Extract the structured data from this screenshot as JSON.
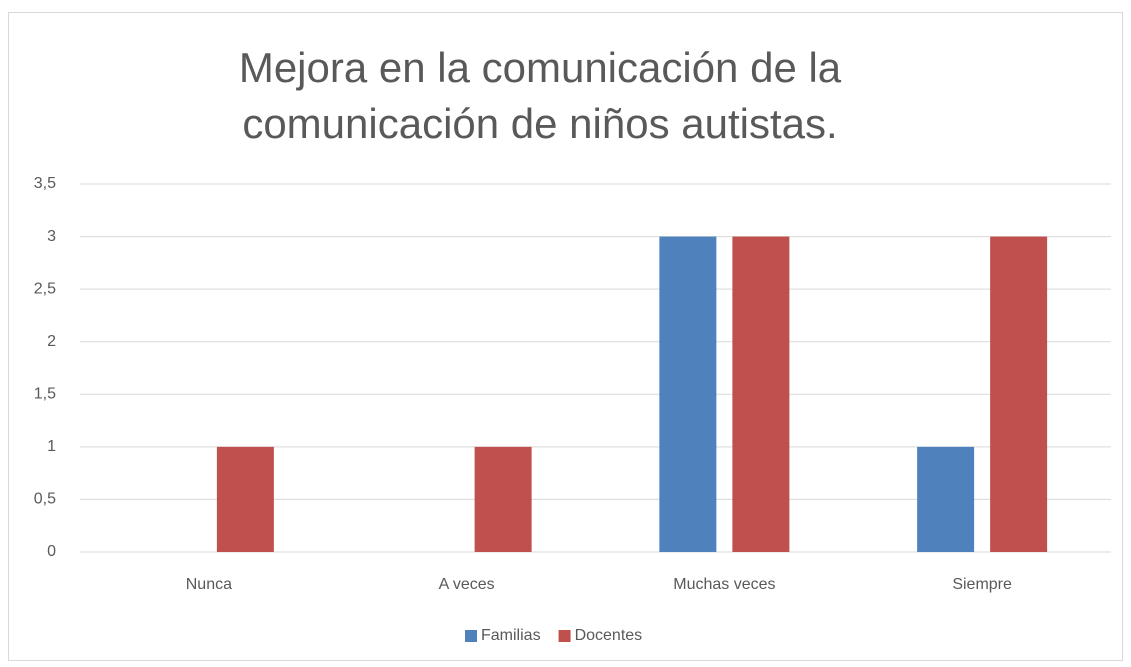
{
  "chart_data": {
    "type": "bar",
    "title": "Mejora en la comunicación de la comunicación de niños autistas.",
    "categories": [
      "Nunca",
      "A veces",
      "Muchas veces",
      "Siempre"
    ],
    "series": [
      {
        "name": "Familias",
        "color": "#4f81bd",
        "values": [
          0,
          0,
          3,
          1
        ]
      },
      {
        "name": "Docentes",
        "color": "#c0504d",
        "values": [
          1,
          1,
          3,
          3
        ]
      }
    ],
    "ylim": [
      0,
      3.5
    ],
    "yticks": [
      0,
      {
        "value": 0.5,
        "label": "0,5"
      },
      1,
      {
        "value": 1.5,
        "label": "1,5"
      },
      2,
      {
        "value": 2.5,
        "label": "2,5"
      },
      3,
      {
        "value": 3.5,
        "label": "3,5"
      }
    ],
    "grid": true,
    "legend": "bottom"
  }
}
